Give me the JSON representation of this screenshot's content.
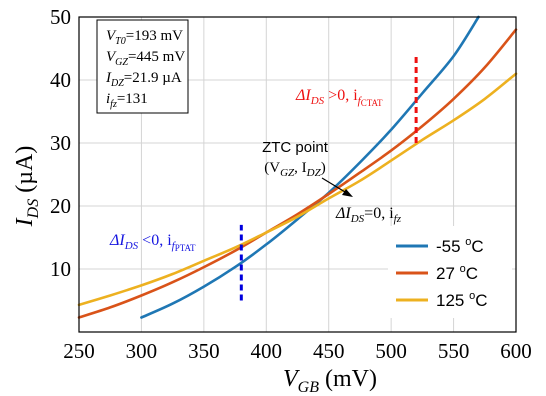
{
  "chart_data": {
    "type": "line",
    "xlabel_main": "V",
    "xlabel_sub": "GB",
    "xlabel_unit": " (mV)",
    "ylabel_main": "I",
    "ylabel_sub": "DS",
    "ylabel_unit": " (µA)",
    "xlim": [
      250,
      600
    ],
    "ylim": [
      0,
      50
    ],
    "xticks": [
      250,
      300,
      350,
      400,
      450,
      500,
      550,
      600
    ],
    "yticks": [
      10,
      20,
      30,
      40,
      50
    ],
    "grid": true,
    "legend_position": "bottom-right",
    "series": [
      {
        "name": "-55 °C",
        "label_text": "-55 ",
        "label_sup": "o",
        "label_unit": "C",
        "color": "#1f77b4",
        "x": [
          300,
          325,
          350,
          375,
          400,
          425,
          450,
          475,
          500,
          525,
          550,
          570
        ],
        "y": [
          2.3,
          4.5,
          7.2,
          10.3,
          13.9,
          17.9,
          22.1,
          26.9,
          32.1,
          37.9,
          43.8,
          50.0
        ]
      },
      {
        "name": "27 °C",
        "label_text": "27 ",
        "label_sup": "o",
        "label_unit": "C",
        "color": "#d95319",
        "x": [
          250,
          275,
          300,
          325,
          350,
          375,
          400,
          425,
          450,
          475,
          500,
          525,
          550,
          575,
          600
        ],
        "y": [
          2.3,
          3.9,
          5.8,
          7.9,
          10.3,
          12.9,
          15.8,
          18.7,
          21.9,
          25.3,
          28.8,
          32.7,
          37.0,
          42.0,
          48.0
        ]
      },
      {
        "name": "125 °C",
        "label_text": "125 ",
        "label_sup": "o",
        "label_unit": "C",
        "color": "#edb120",
        "x": [
          250,
          275,
          300,
          325,
          350,
          375,
          400,
          425,
          450,
          475,
          500,
          525,
          550,
          575,
          600
        ],
        "y": [
          4.3,
          5.8,
          7.4,
          9.2,
          11.3,
          13.4,
          15.8,
          18.3,
          21.2,
          24.0,
          27.2,
          30.5,
          33.6,
          37.0,
          41.0
        ]
      }
    ],
    "markers": [
      {
        "x": 380,
        "y_from": 5,
        "y_to": 17,
        "color": "#0000dd"
      },
      {
        "x": 520,
        "y_from": 30,
        "y_to": 44,
        "color": "#ee1111"
      }
    ],
    "params_box": {
      "lines": [
        {
          "main": "V",
          "sub": "T0",
          "value": "=193 mV"
        },
        {
          "main": "V",
          "sub": "GZ",
          "value": "=445 mV"
        },
        {
          "main": "I",
          "sub": "DZ",
          "value": "=21.9 µA"
        },
        {
          "main": "i",
          "sub": "fz",
          "value": "=131"
        }
      ]
    },
    "annotations": {
      "ztc_line1": "ZTC point",
      "ztc_line2_open": "(V",
      "ztc_line2_sub1": "GZ",
      "ztc_line2_mid": ", I",
      "ztc_line2_sub2": "DZ",
      "ztc_line2_close": ")",
      "zero_delta": "ΔI",
      "zero_sub": "DS",
      "zero_mid": "=0, i",
      "zero_sub2": "fz",
      "ptat_delta": "ΔI",
      "ptat_sub": "DS",
      "ptat_mid": " <0, i",
      "ptat_sub2": "f",
      "ptat_sub3": "PTAT",
      "ptat_color": "#1515e0",
      "ctat_delta": "ΔI",
      "ctat_sub": "DS",
      "ctat_mid": " >0, i",
      "ctat_sub2": "f",
      "ctat_sub3": "CTAT",
      "ctat_color": "#ee1111"
    }
  }
}
